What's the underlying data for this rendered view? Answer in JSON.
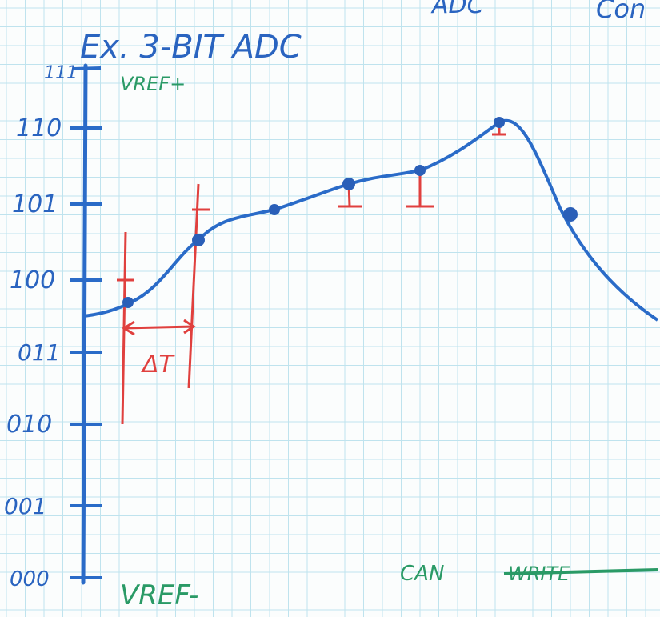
{
  "header": {
    "title": "Ex. 3-BIT ADC",
    "top_words": [
      "ADC",
      "Con"
    ]
  },
  "axis": {
    "top_label": "VREF+",
    "bottom_label": "VREF-",
    "codes": [
      "111",
      "110",
      "101",
      "100",
      "011",
      "010",
      "001",
      "000"
    ]
  },
  "annotations": {
    "delta": "ΔT",
    "note": "CAN",
    "struck": "WRITE"
  }
}
